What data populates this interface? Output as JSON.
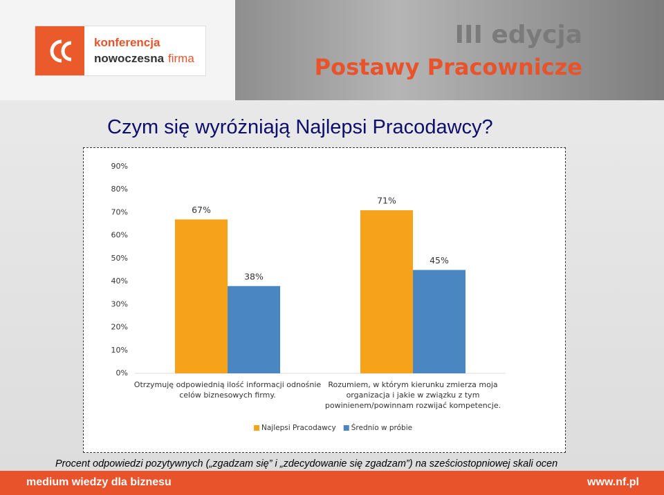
{
  "header": {
    "logo": [
      "konferencja",
      "nowoczesna",
      "firma"
    ],
    "edition": "III edycja",
    "event": "Postawy Pracownicze"
  },
  "slide_title": "Czym się wyróżniają Najlepsi Pracodawcy?",
  "chart_data": {
    "type": "bar",
    "categories": [
      "Otrzymuję odpowiednią ilość informacji odnośnie celów biznesowych firmy.",
      "Rozumiem, w którym kierunku zmierza moja organizacja i jakie w związku z tym powinienem/powinnam rozwijać kompetencje."
    ],
    "series": [
      {
        "name": "Najlepsi Pracodawcy",
        "color": "#f7a21b",
        "values": [
          67,
          71
        ],
        "value_labels": [
          "67%",
          "71%"
        ]
      },
      {
        "name": "Średnio w próbie",
        "color": "#4a86c1",
        "values": [
          38,
          45
        ],
        "value_labels": [
          "38%",
          "45%"
        ]
      }
    ],
    "ylim": [
      0,
      90
    ],
    "yticks": [
      {
        "value": 0,
        "label": "0%"
      },
      {
        "value": 10,
        "label": "10%"
      },
      {
        "value": 20,
        "label": "20%"
      },
      {
        "value": 30,
        "label": "30%"
      },
      {
        "value": 40,
        "label": "40%"
      },
      {
        "value": 50,
        "label": "50%"
      },
      {
        "value": 60,
        "label": "60%"
      },
      {
        "value": 70,
        "label": "70%"
      },
      {
        "value": 80,
        "label": "80%"
      },
      {
        "value": 90,
        "label": "90%"
      }
    ],
    "grid": false,
    "legend": "bottom"
  },
  "footnote": "Procent odpowiedzi pozytywnych („zgadzam się” i „zdecydowanie się zgadzam”) na sześciostopniowej skali ocen",
  "footer": {
    "tagline": "medium wiedzy dla biznesu",
    "url": "www.nf.pl"
  }
}
